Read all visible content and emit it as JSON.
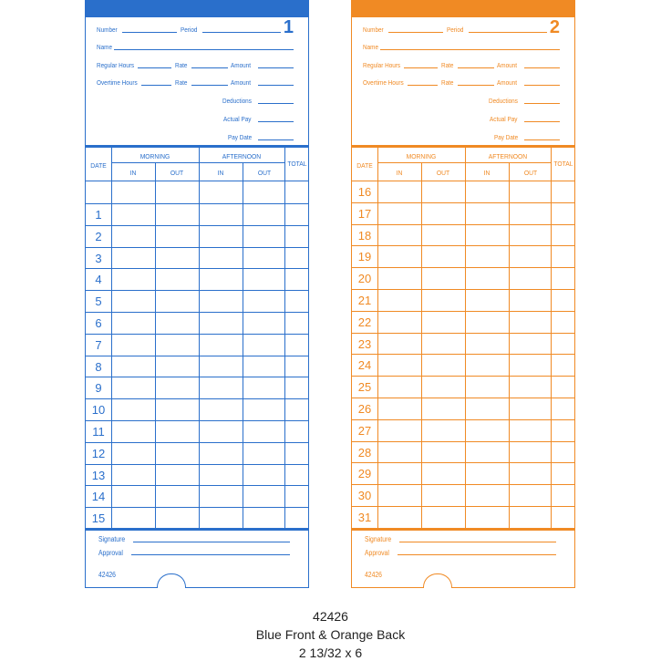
{
  "cards": [
    {
      "color": "#2a6fcb",
      "number": "1",
      "dates": [
        "",
        "1",
        "2",
        "3",
        "4",
        "5",
        "6",
        "7",
        "8",
        "9",
        "10",
        "11",
        "12",
        "13",
        "14",
        "15"
      ]
    },
    {
      "color": "#f08a24",
      "number": "2",
      "dates": [
        "16",
        "17",
        "18",
        "19",
        "20",
        "21",
        "22",
        "23",
        "24",
        "25",
        "26",
        "27",
        "28",
        "29",
        "30",
        "31"
      ]
    }
  ],
  "fields": {
    "number": "Number",
    "period": "Period",
    "name": "Name",
    "regular_hours": "Regular Hours",
    "rate": "Rate",
    "amount": "Amount",
    "overtime_hours": "Overtime Hours",
    "deductions": "Deductions",
    "actual_pay": "Actual Pay",
    "pay_date": "Pay Date"
  },
  "table": {
    "date": "DATE",
    "morning": "MORNING",
    "afternoon": "AFTERNOON",
    "total": "TOTAL",
    "in": "IN",
    "out": "OUT"
  },
  "footer": {
    "signature": "Signature",
    "approval": "Approval",
    "code": "42426"
  },
  "caption": {
    "model": "42426",
    "description": "Blue Front & Orange Back",
    "size": "2 13/32 x 6"
  }
}
